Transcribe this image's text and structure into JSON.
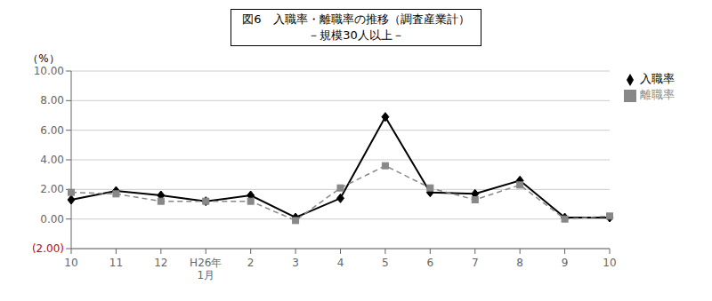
{
  "chart_data": {
    "type": "line",
    "title": "図6　入職率・離職率の推移（調査産業計）",
    "subtitle": "－規模30人以上－",
    "y_label": "（%）",
    "categories": [
      "10",
      "11",
      "12",
      "H26年\n1月",
      "2",
      "3",
      "4",
      "5",
      "6",
      "7",
      "8",
      "9",
      "10"
    ],
    "series": [
      {
        "name": "入職率",
        "color": "#000000",
        "marker": "diamond",
        "line_style": "solid",
        "values": [
          1.3,
          1.9,
          1.6,
          1.2,
          1.6,
          0.1,
          1.4,
          6.9,
          1.8,
          1.7,
          2.6,
          0.1,
          0.1
        ]
      },
      {
        "name": "離職率",
        "color": "#888888",
        "marker": "square",
        "line_style": "dashed",
        "values": [
          1.8,
          1.7,
          1.2,
          1.2,
          1.2,
          -0.1,
          2.1,
          3.6,
          2.1,
          1.3,
          2.3,
          0.0,
          0.2
        ]
      }
    ],
    "ylim": [
      -2.0,
      10.0
    ],
    "yticks": [
      {
        "value": -2.0,
        "label": "(2.00)"
      },
      {
        "value": 0.0,
        "label": "0.00"
      },
      {
        "value": 2.0,
        "label": "2.00"
      },
      {
        "value": 4.0,
        "label": "4.00"
      },
      {
        "value": 6.0,
        "label": "6.00"
      },
      {
        "value": 8.0,
        "label": "8.00"
      },
      {
        "value": 10.0,
        "label": "10.00"
      }
    ],
    "grid": true,
    "legend": "right"
  }
}
